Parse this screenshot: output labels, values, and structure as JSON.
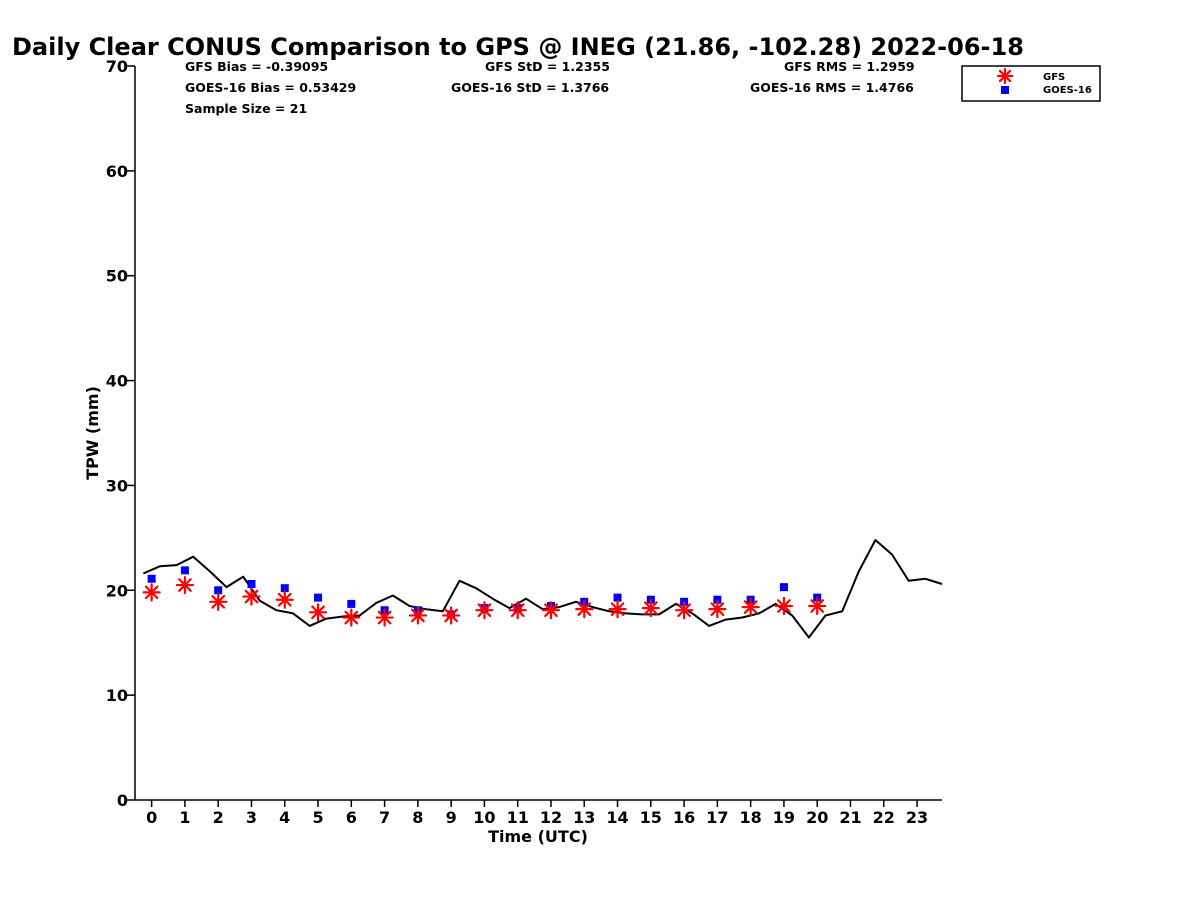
{
  "chart_data": {
    "type": "line",
    "title": "Daily Clear CONUS Comparison to GPS @ INEG (21.86, -102.28) 2022-06-18",
    "xlabel": "Time (UTC)",
    "ylabel": "TPW (mm)",
    "xlim": [
      -0.5,
      23.75
    ],
    "ylim": [
      0,
      70
    ],
    "xticks": [
      "0",
      "1",
      "2",
      "3",
      "4",
      "5",
      "6",
      "7",
      "8",
      "9",
      "10",
      "11",
      "12",
      "13",
      "14",
      "15",
      "16",
      "17",
      "18",
      "19",
      "20",
      "21",
      "22",
      "23"
    ],
    "yticks": [
      "0",
      "10",
      "20",
      "30",
      "40",
      "50",
      "60",
      "70"
    ],
    "grid": false,
    "legend_position": "top-right, outside plot",
    "stats": {
      "gfs_bias": "GFS Bias = -0.39095",
      "goes_bias": "GOES-16 Bias = 0.53429",
      "sample_size": "Sample Size = 21",
      "gfs_std": "GFS StD = 1.2355",
      "goes_std": "GOES-16 StD = 1.3766",
      "gfs_rms": "GFS RMS = 1.2959",
      "goes_rms": "GOES-16 RMS = 1.4766"
    },
    "series": [
      {
        "name": "",
        "kind": "line",
        "color": "#000000",
        "x": [
          -0.25,
          0.25,
          0.75,
          1.25,
          1.75,
          2.25,
          2.75,
          3.25,
          3.75,
          4.25,
          4.75,
          5.25,
          5.75,
          6.25,
          6.75,
          7.25,
          7.75,
          8.25,
          8.75,
          9.25,
          9.75,
          10.25,
          10.75,
          11.25,
          11.75,
          12.25,
          12.75,
          13.25,
          13.75,
          14.25,
          14.75,
          15.25,
          15.75,
          16.25,
          16.75,
          17.25,
          17.75,
          18.25,
          18.75,
          19.25,
          19.75,
          20.25,
          20.75,
          21.25,
          21.75,
          22.25,
          22.75,
          23.25,
          23.75
        ],
        "y": [
          21.6,
          22.3,
          22.4,
          23.2,
          21.8,
          20.3,
          21.3,
          19.0,
          18.1,
          17.8,
          16.6,
          17.3,
          17.5,
          17.6,
          18.8,
          19.5,
          18.5,
          18.2,
          18.0,
          20.9,
          20.2,
          19.2,
          18.3,
          19.2,
          18.2,
          18.4,
          18.9,
          18.4,
          18.0,
          17.8,
          17.7,
          17.7,
          18.7,
          17.8,
          16.6,
          17.2,
          17.4,
          17.8,
          18.7,
          17.6,
          15.5,
          17.6,
          18.0,
          21.8,
          24.8,
          23.4,
          20.9,
          21.1,
          20.6
        ]
      },
      {
        "name": "GFS",
        "kind": "asterisk",
        "color": "#ff0000",
        "x": [
          0,
          1,
          2,
          3,
          4,
          5,
          6,
          7,
          8,
          9,
          10,
          11,
          12,
          13,
          14,
          15,
          16,
          17,
          18,
          19,
          20
        ],
        "y": [
          19.8,
          20.5,
          18.9,
          19.4,
          19.1,
          17.9,
          17.4,
          17.4,
          17.6,
          17.6,
          18.1,
          18.1,
          18.1,
          18.2,
          18.2,
          18.3,
          18.1,
          18.2,
          18.4,
          18.5,
          18.5
        ]
      },
      {
        "name": "GOES-16",
        "kind": "square",
        "color": "#0000ff",
        "x": [
          0,
          1,
          2,
          3,
          4,
          5,
          6,
          7,
          8,
          9,
          10,
          11,
          12,
          13,
          14,
          15,
          16,
          17,
          18,
          19,
          20
        ],
        "y": [
          21.1,
          21.9,
          20.0,
          20.6,
          20.2,
          19.3,
          18.7,
          18.1,
          18.1,
          17.7,
          18.3,
          18.3,
          18.5,
          18.9,
          19.3,
          19.1,
          18.9,
          19.1,
          19.1,
          20.3,
          19.3
        ]
      }
    ]
  }
}
